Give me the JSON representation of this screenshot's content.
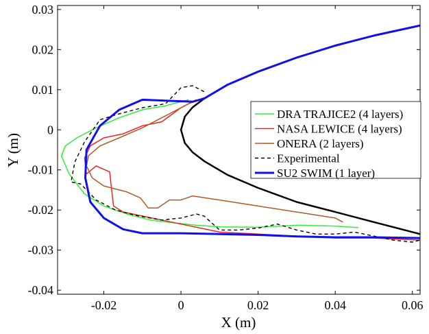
{
  "chart_data": {
    "type": "line",
    "xlabel": "X (m)",
    "ylabel": "Y (m)",
    "xlim": [
      -0.032,
      0.062
    ],
    "ylim": [
      -0.041,
      0.031
    ],
    "xticks": [
      -0.02,
      0,
      0.02,
      0.04,
      0.06
    ],
    "xtick_labels": [
      "-0.02",
      "0",
      "0.02",
      "0.04",
      "0.06"
    ],
    "yticks": [
      0.03,
      0.02,
      0.01,
      0,
      -0.01,
      -0.02,
      -0.03,
      -0.04
    ],
    "ytick_labels": [
      "0.03",
      "0.02",
      "0.01",
      "0",
      "-0.01",
      "-0.02",
      "-0.03",
      "-0.04"
    ],
    "grid": false,
    "legend_position": "center-right",
    "airfoil": {
      "color": "#000000",
      "x": [
        0.062,
        0.05,
        0.04,
        0.03,
        0.02,
        0.012,
        0.006,
        0.003,
        0.001,
        0,
        0.001,
        0.003,
        0.006,
        0.012,
        0.02,
        0.03,
        0.04,
        0.05,
        0.062
      ],
      "y": [
        0.026,
        0.0235,
        0.021,
        0.018,
        0.0145,
        0.0112,
        0.0078,
        0.0056,
        0.0033,
        0,
        -0.0033,
        -0.0056,
        -0.0078,
        -0.0112,
        -0.0145,
        -0.018,
        -0.0205,
        -0.023,
        -0.026
      ]
    },
    "series": [
      {
        "name": "DRA TRAJICE2 (4 layers)",
        "color": "#33ee33",
        "dash": "",
        "width": 1.5,
        "x": [
          0.002,
          -0.004,
          -0.01,
          -0.016,
          -0.022,
          -0.027,
          -0.03,
          -0.031,
          -0.029,
          -0.025,
          -0.02,
          -0.014,
          -0.008,
          -0.002,
          0.004,
          0.01,
          0.02,
          0.03,
          0.04,
          0.046
        ],
        "y": [
          0.0075,
          0.006,
          0.005,
          0.003,
          0.0005,
          -0.002,
          -0.004,
          -0.0065,
          -0.011,
          -0.016,
          -0.019,
          -0.021,
          -0.0225,
          -0.0232,
          -0.0238,
          -0.0242,
          -0.0243,
          -0.0238,
          -0.024,
          -0.0244
        ]
      },
      {
        "name": "NASA LEWICE (4 layers)",
        "color": "#ee2222",
        "dash": "",
        "width": 1.5,
        "x": [
          0.004,
          0.0,
          -0.005,
          -0.01,
          -0.015,
          -0.02,
          -0.0235,
          -0.025,
          -0.0245,
          -0.022,
          -0.0185,
          -0.0175,
          -0.015,
          -0.01,
          -0.005,
          0.0,
          0.01,
          0.02,
          0.03,
          0.04,
          0.05,
          0.062
        ],
        "y": [
          0.0075,
          0.0055,
          0.002,
          0.001,
          -0.001,
          -0.002,
          -0.004,
          -0.007,
          -0.011,
          -0.009,
          -0.0105,
          -0.019,
          -0.0205,
          -0.0215,
          -0.0225,
          -0.0235,
          -0.0255,
          -0.026,
          -0.0265,
          -0.027,
          -0.027,
          -0.0275
        ]
      },
      {
        "name": "ONERA (2 layers)",
        "color": "#b05a28",
        "dash": "",
        "width": 1.5,
        "x": [
          0.006,
          0.002,
          -0.004,
          -0.01,
          -0.016,
          -0.021,
          -0.024,
          -0.0245,
          -0.023,
          -0.02,
          -0.014,
          -0.0105,
          -0.0085,
          -0.006,
          -0.003,
          0.0,
          0.003,
          0.01,
          0.02,
          0.03,
          0.04,
          0.042
        ],
        "y": [
          0.008,
          0.0065,
          0.0035,
          0.0005,
          -0.002,
          -0.004,
          -0.0065,
          -0.009,
          -0.012,
          -0.014,
          -0.0155,
          -0.017,
          -0.0195,
          -0.0195,
          -0.0175,
          -0.0175,
          -0.0165,
          -0.0175,
          -0.019,
          -0.0205,
          -0.022,
          -0.023
        ]
      },
      {
        "name": "Experimental",
        "color": "#000000",
        "dash": "5,4",
        "width": 1.4,
        "x": [
          0.006,
          0.003,
          0.0,
          -0.004,
          -0.01,
          -0.016,
          -0.021,
          -0.025,
          -0.0275,
          -0.0285,
          -0.026,
          -0.022,
          -0.017,
          -0.011,
          -0.005,
          0.0,
          0.004,
          0.006,
          0.01,
          0.015,
          0.02,
          0.025,
          0.03,
          0.035,
          0.04,
          0.045,
          0.05,
          0.055,
          0.06,
          0.062
        ],
        "y": [
          0.0095,
          0.011,
          0.0105,
          0.0065,
          0.0055,
          0.004,
          0.0025,
          -0.003,
          -0.008,
          -0.013,
          -0.0135,
          -0.0175,
          -0.02,
          -0.0215,
          -0.0225,
          -0.022,
          -0.021,
          -0.0215,
          -0.025,
          -0.025,
          -0.0245,
          -0.0235,
          -0.025,
          -0.026,
          -0.026,
          -0.0255,
          -0.0265,
          -0.0275,
          -0.028,
          -0.0275
        ]
      },
      {
        "name": "SU2 SWIM (1 layer)",
        "color": "#1010ee",
        "dash": "",
        "width": 3,
        "x": [
          0.062,
          0.05,
          0.04,
          0.03,
          0.02,
          0.012,
          0.006,
          0.003,
          -0.002,
          -0.01,
          -0.016,
          -0.021,
          -0.0245,
          -0.0248,
          -0.0235,
          -0.02,
          -0.015,
          -0.01,
          -0.004,
          0.0,
          0.01,
          0.02,
          0.03,
          0.04,
          0.05,
          0.062
        ],
        "y": [
          0.026,
          0.0235,
          0.021,
          0.018,
          0.0145,
          0.0112,
          0.0078,
          0.007,
          0.0072,
          0.0075,
          0.005,
          0.001,
          -0.005,
          -0.012,
          -0.018,
          -0.022,
          -0.0248,
          -0.0258,
          -0.0258,
          -0.0258,
          -0.026,
          -0.0262,
          -0.0266,
          -0.0268,
          -0.0268,
          -0.027
        ]
      }
    ]
  }
}
